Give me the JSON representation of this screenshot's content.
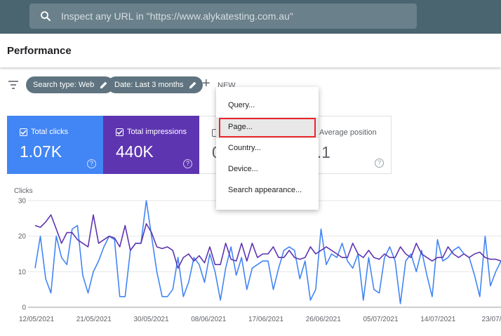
{
  "search": {
    "placeholder": "Inspect any URL in \"https://www.alykatesting.com.au\""
  },
  "header": {
    "title": "Performance"
  },
  "filters": {
    "chips": [
      {
        "label": "Search type: Web"
      },
      {
        "label": "Date: Last 3 months"
      }
    ],
    "new_label": "NEW"
  },
  "metrics": [
    {
      "label": "Total clicks",
      "value": "1.07K",
      "checked": true,
      "color": "#4285f4"
    },
    {
      "label": "Total impressions",
      "value": "440K",
      "checked": true,
      "color": "#5e35b1"
    },
    {
      "label": "",
      "value": "0",
      "checked": false,
      "color": "#ffffff"
    },
    {
      "label": "Average position",
      "value": "3.1",
      "checked": false,
      "color": "#ffffff"
    }
  ],
  "menu": {
    "items": [
      "Query...",
      "Page...",
      "Country...",
      "Device...",
      "Search appearance..."
    ],
    "highlighted_index": 1
  },
  "chart_data": {
    "type": "line",
    "ylabel": "Clicks",
    "yticks": [
      0,
      10,
      20,
      30
    ],
    "ylim": [
      0,
      30
    ],
    "x_tick_labels": [
      "12/05/2021",
      "21/05/2021",
      "30/05/2021",
      "08/06/2021",
      "17/06/2021",
      "26/06/2021",
      "05/07/2021",
      "14/07/2021",
      "23/07/20"
    ],
    "grid": true,
    "series": [
      {
        "color": "#4285f4",
        "values": [
          11,
          20,
          8,
          4,
          20,
          14,
          12,
          22,
          23,
          9,
          4,
          10,
          13,
          17,
          20,
          19,
          3,
          3,
          16,
          18,
          18,
          30,
          20,
          10,
          3,
          3,
          5,
          14,
          3,
          7,
          14,
          12,
          7,
          15,
          10,
          2,
          11,
          17,
          9,
          14,
          5,
          11,
          12,
          13,
          13,
          5,
          11,
          16,
          17,
          16,
          8,
          13,
          2,
          5,
          22,
          12,
          15,
          14,
          18,
          13,
          11,
          15,
          2,
          14,
          5,
          4,
          14,
          17,
          13,
          1,
          13,
          15,
          10,
          16,
          9,
          3,
          19,
          13,
          14,
          16,
          17,
          15,
          14,
          9,
          3,
          20,
          6,
          10,
          13
        ]
      },
      {
        "color": "#5e35b1",
        "values": [
          23,
          22.5,
          24,
          26,
          22,
          18,
          21,
          21,
          19,
          18,
          17,
          26,
          18,
          19,
          20,
          19.5,
          17,
          23,
          16,
          18,
          18,
          23.5,
          21,
          17,
          16.5,
          17,
          16,
          11,
          14,
          15,
          13,
          14.5,
          12.5,
          17,
          12,
          12,
          18,
          13.5,
          13,
          18,
          13,
          18,
          14,
          15,
          15,
          17,
          14,
          14,
          16,
          14,
          13.5,
          14,
          17,
          15,
          16,
          17,
          16,
          15,
          14,
          14,
          18,
          15,
          14,
          16,
          14,
          13.5,
          15,
          14,
          14,
          17,
          15,
          14,
          18,
          15,
          14,
          13,
          14,
          14,
          17,
          15,
          14,
          15,
          14,
          15,
          15.5,
          14,
          13.5,
          13.5,
          13
        ]
      }
    ]
  }
}
